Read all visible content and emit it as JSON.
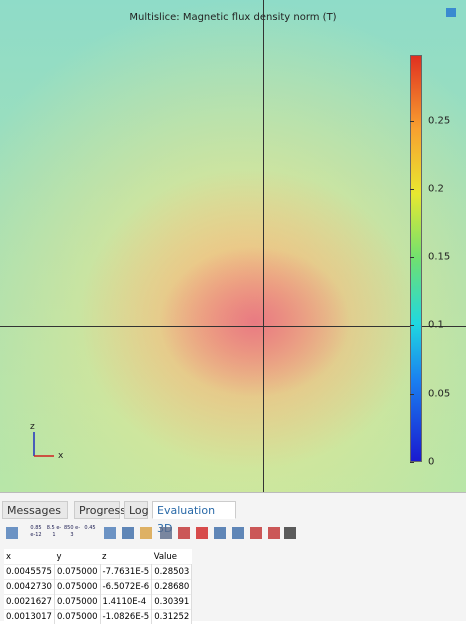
{
  "plot": {
    "title": "Multislice: Magnetic flux density norm (T)",
    "axis_labels": [
      "z",
      "x"
    ],
    "colorbar": {
      "range": [
        0,
        0.298
      ],
      "ticks": [
        0.25,
        0.2,
        0.15,
        0.1,
        0.05,
        0
      ]
    }
  },
  "tabs": [
    "Messages",
    "Progress",
    "Log",
    "Evaluation 3D"
  ],
  "toolbar_labels": [
    "0.85 e-12",
    "8.5 e-1",
    "850 e-3",
    "0.45"
  ],
  "table": {
    "columns": [
      "x",
      "y",
      "z",
      "Value"
    ],
    "rows": [
      [
        "0.0045575",
        "0.075000",
        "-7.7631E-5",
        "0.28503"
      ],
      [
        "0.0042730",
        "0.075000",
        "-6.5072E-6",
        "0.28680"
      ],
      [
        "0.0021627",
        "0.075000",
        "1.4110E-4",
        "0.30391"
      ],
      [
        "0.0013017",
        "0.075000",
        "-1.0826E-5",
        "0.31252"
      ]
    ]
  }
}
